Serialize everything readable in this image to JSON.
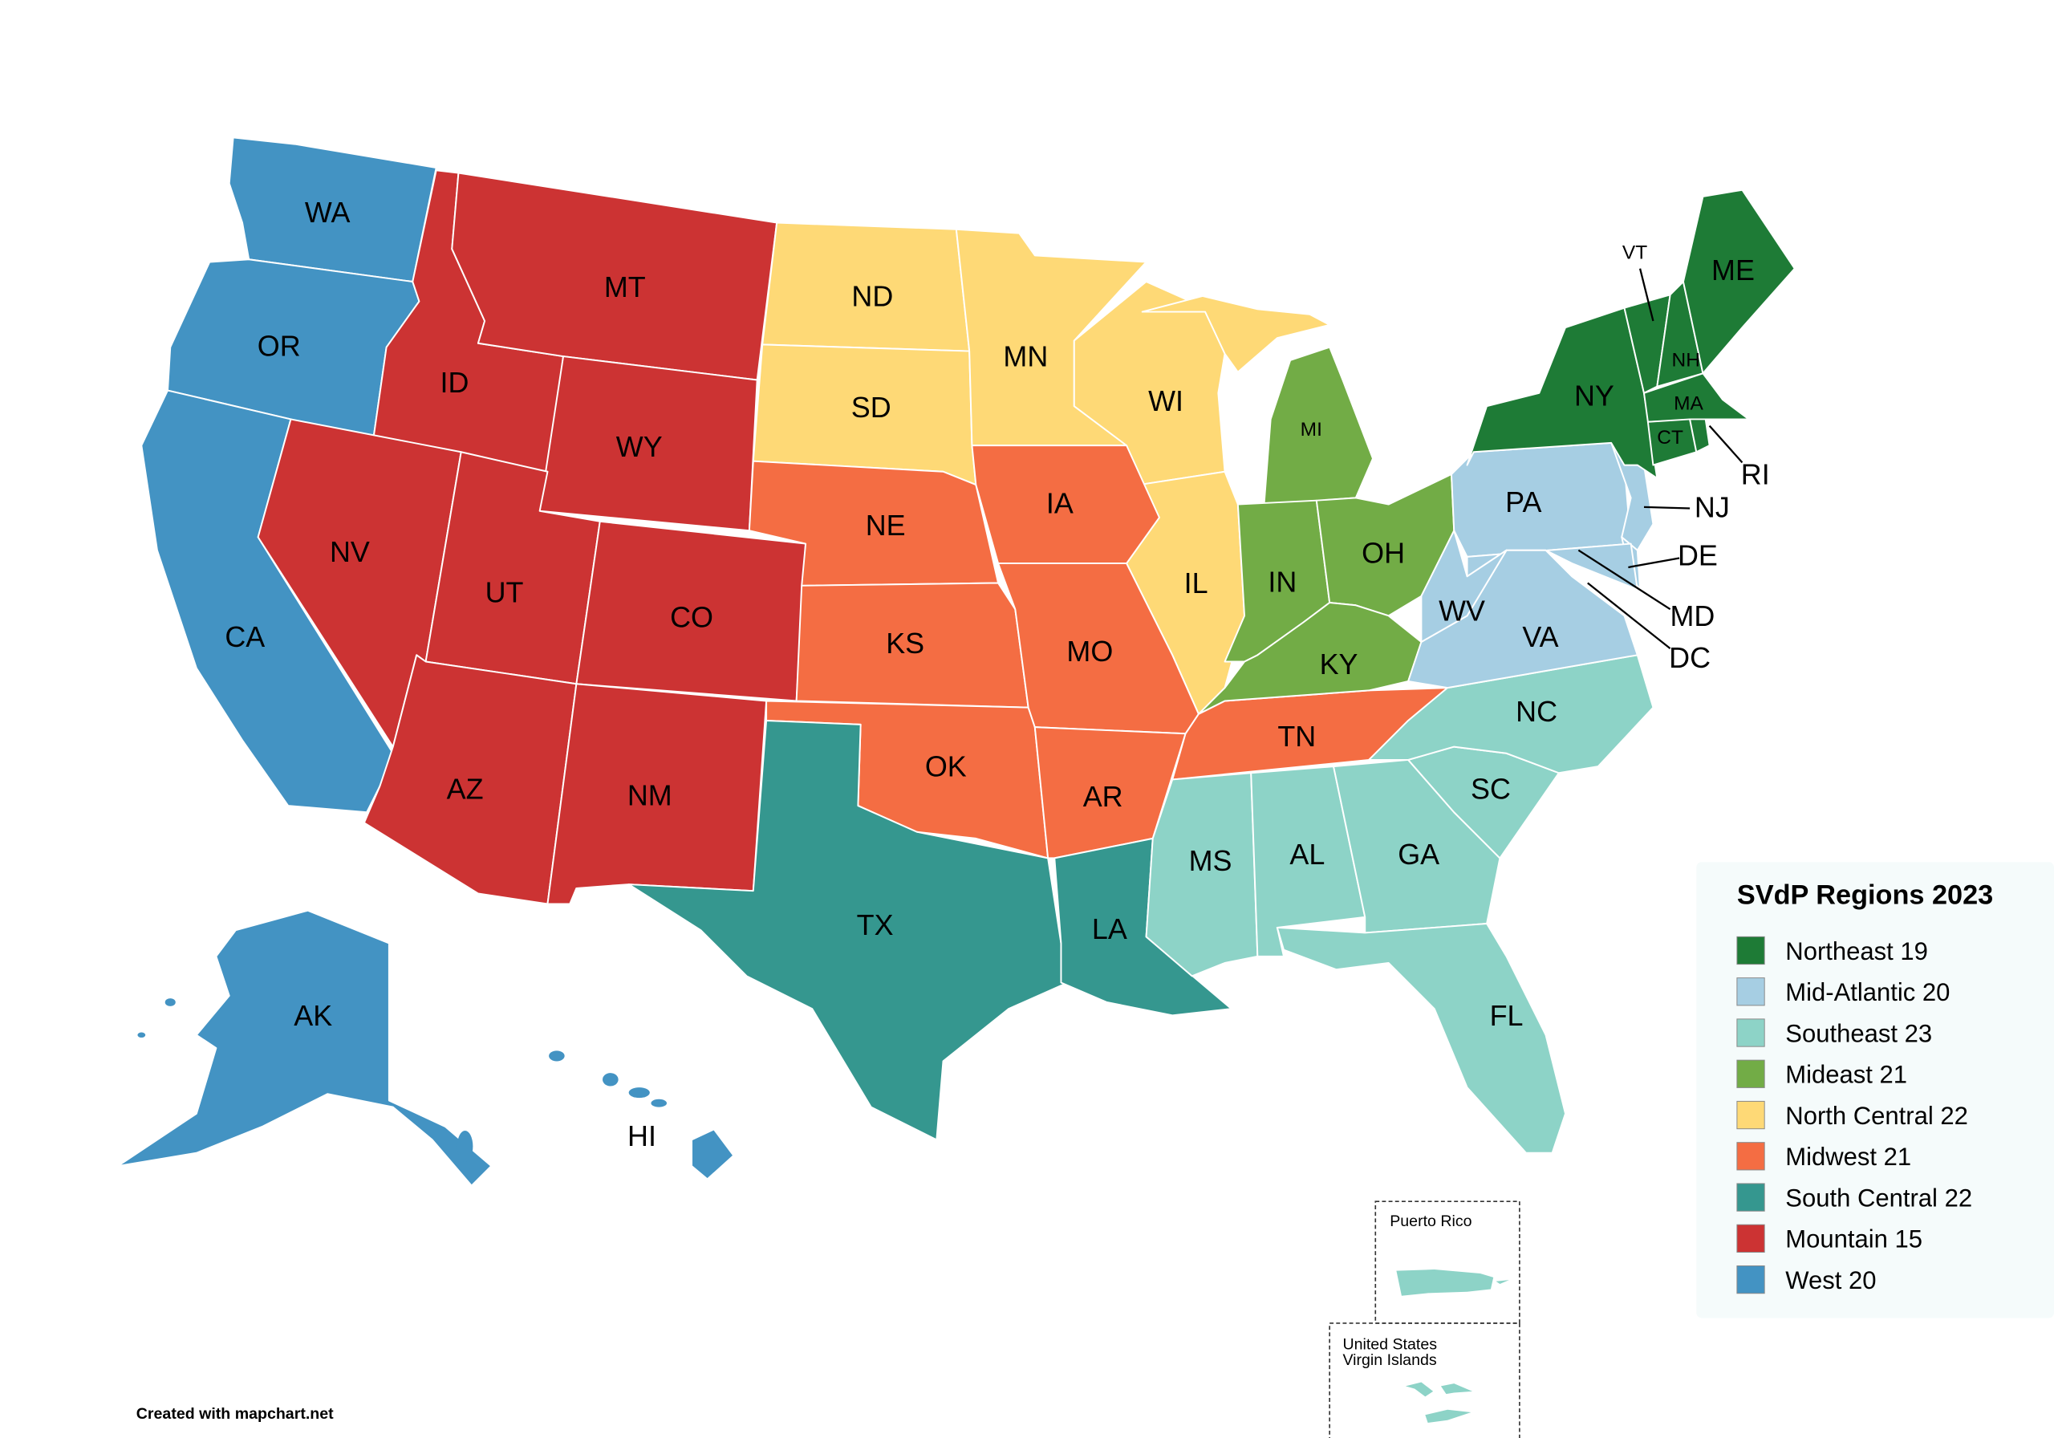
{
  "legend": {
    "title": "SVdP Regions 2023",
    "items": [
      {
        "id": "northeast",
        "label": "Northeast 19",
        "color": "#1e7b36"
      },
      {
        "id": "midatlantic",
        "label": "Mid-Atlantic 20",
        "color": "#a6cee3"
      },
      {
        "id": "southeast",
        "label": "Southeast 23",
        "color": "#8dd3c7"
      },
      {
        "id": "mideast",
        "label": "Mideast 21",
        "color": "#72ac46"
      },
      {
        "id": "northcentral",
        "label": "North Central 22",
        "color": "#fed976"
      },
      {
        "id": "midwest",
        "label": "Midwest 21",
        "color": "#f46d43"
      },
      {
        "id": "southcentral",
        "label": "South Central 22",
        "color": "#35978f"
      },
      {
        "id": "mountain",
        "label": "Mountain 15",
        "color": "#cc3333"
      },
      {
        "id": "west",
        "label": "West 20",
        "color": "#4393c3"
      }
    ]
  },
  "states": [
    {
      "code": "WA",
      "region": "west"
    },
    {
      "code": "OR",
      "region": "west"
    },
    {
      "code": "CA",
      "region": "west"
    },
    {
      "code": "AK",
      "region": "west"
    },
    {
      "code": "HI",
      "region": "west"
    },
    {
      "code": "ID",
      "region": "mountain"
    },
    {
      "code": "MT",
      "region": "mountain"
    },
    {
      "code": "WY",
      "region": "mountain"
    },
    {
      "code": "NV",
      "region": "mountain"
    },
    {
      "code": "UT",
      "region": "mountain"
    },
    {
      "code": "CO",
      "region": "mountain"
    },
    {
      "code": "AZ",
      "region": "mountain"
    },
    {
      "code": "NM",
      "region": "mountain"
    },
    {
      "code": "ND",
      "region": "northcentral"
    },
    {
      "code": "SD",
      "region": "northcentral"
    },
    {
      "code": "MN",
      "region": "northcentral"
    },
    {
      "code": "WI",
      "region": "northcentral"
    },
    {
      "code": "IL",
      "region": "northcentral"
    },
    {
      "code": "NE",
      "region": "midwest"
    },
    {
      "code": "KS",
      "region": "midwest"
    },
    {
      "code": "OK",
      "region": "midwest"
    },
    {
      "code": "IA",
      "region": "midwest"
    },
    {
      "code": "MO",
      "region": "midwest"
    },
    {
      "code": "AR",
      "region": "midwest"
    },
    {
      "code": "TN",
      "region": "midwest"
    },
    {
      "code": "TX",
      "region": "southcentral"
    },
    {
      "code": "LA",
      "region": "southcentral"
    },
    {
      "code": "MI",
      "region": "mideast"
    },
    {
      "code": "IN",
      "region": "mideast"
    },
    {
      "code": "OH",
      "region": "mideast"
    },
    {
      "code": "KY",
      "region": "mideast"
    },
    {
      "code": "MS",
      "region": "southeast"
    },
    {
      "code": "AL",
      "region": "southeast"
    },
    {
      "code": "GA",
      "region": "southeast"
    },
    {
      "code": "FL",
      "region": "southeast"
    },
    {
      "code": "SC",
      "region": "southeast"
    },
    {
      "code": "NC",
      "region": "southeast"
    },
    {
      "code": "PA",
      "region": "midatlantic"
    },
    {
      "code": "NJ",
      "region": "midatlantic"
    },
    {
      "code": "DE",
      "region": "midatlantic"
    },
    {
      "code": "MD",
      "region": "midatlantic"
    },
    {
      "code": "DC",
      "region": "midatlantic"
    },
    {
      "code": "VA",
      "region": "midatlantic"
    },
    {
      "code": "WV",
      "region": "midatlantic"
    },
    {
      "code": "NY",
      "region": "northeast"
    },
    {
      "code": "VT",
      "region": "northeast"
    },
    {
      "code": "NH",
      "region": "northeast"
    },
    {
      "code": "ME",
      "region": "northeast"
    },
    {
      "code": "MA",
      "region": "northeast"
    },
    {
      "code": "CT",
      "region": "northeast"
    },
    {
      "code": "RI",
      "region": "northeast"
    }
  ],
  "insets": {
    "puerto_rico": {
      "label": "Puerto Rico",
      "region": "southeast"
    },
    "virgin_islands": {
      "label_line1": "United States",
      "label_line2": "Virgin Islands",
      "region": "southeast"
    }
  },
  "credit": "Created with mapchart.net"
}
